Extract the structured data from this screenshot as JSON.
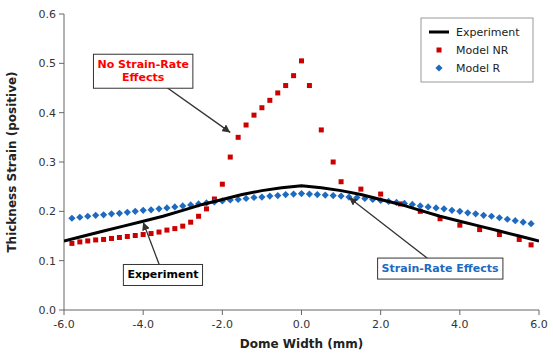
{
  "chart_data": {
    "type": "line",
    "xlabel": "Dome Width (mm)",
    "ylabel": "Thickness Strain (positive)",
    "xlim": [
      -6.0,
      6.0
    ],
    "ylim": [
      0.0,
      0.6
    ],
    "xticks": [
      {
        "value": -6.0,
        "label": "-6.0"
      },
      {
        "value": -4.0,
        "label": "-4.0"
      },
      {
        "value": -2.0,
        "label": "-2.0"
      },
      {
        "value": 0.0,
        "label": "0.0"
      },
      {
        "value": 2.0,
        "label": "2.0"
      },
      {
        "value": 4.0,
        "label": "4.0"
      },
      {
        "value": 6.0,
        "label": "6.0"
      }
    ],
    "yticks": [
      {
        "value": 0.0,
        "label": "0.0"
      },
      0.1,
      0.2,
      0.3,
      0.4,
      0.5,
      0.6
    ],
    "grid": false,
    "legend": "upper right",
    "series": [
      {
        "name": "Experiment",
        "type": "line",
        "color": "#000000",
        "x": [
          -6.0,
          -5.5,
          -5.0,
          -4.5,
          -4.0,
          -3.5,
          -3.0,
          -2.5,
          -2.0,
          -1.5,
          -1.0,
          -0.5,
          0.0,
          0.5,
          1.0,
          1.5,
          2.0,
          2.5,
          3.0,
          3.5,
          4.0,
          4.5,
          5.0,
          5.5,
          6.0
        ],
        "values": [
          0.14,
          0.15,
          0.16,
          0.17,
          0.18,
          0.19,
          0.202,
          0.214,
          0.224,
          0.234,
          0.242,
          0.248,
          0.252,
          0.248,
          0.242,
          0.234,
          0.224,
          0.214,
          0.202,
          0.19,
          0.18,
          0.17,
          0.16,
          0.15,
          0.14
        ]
      },
      {
        "name": "Model NR",
        "type": "scatter",
        "marker": "square",
        "color": "#cc0000",
        "x": [
          -5.8,
          -5.6,
          -5.4,
          -5.2,
          -5.0,
          -4.8,
          -4.6,
          -4.4,
          -4.2,
          -4.0,
          -3.8,
          -3.6,
          -3.4,
          -3.2,
          -3.0,
          -2.8,
          -2.6,
          -2.4,
          -2.2,
          -2.0,
          -1.8,
          -1.6,
          -1.4,
          -1.2,
          -1.0,
          -0.8,
          -0.6,
          -0.4,
          -0.2,
          0.0,
          0.2,
          0.5,
          0.8,
          1.0,
          1.5,
          2.0,
          2.5,
          3.0,
          3.5,
          4.0,
          4.5,
          5.0,
          5.5,
          5.8
        ],
        "values": [
          0.135,
          0.138,
          0.14,
          0.142,
          0.143,
          0.145,
          0.147,
          0.149,
          0.151,
          0.153,
          0.155,
          0.158,
          0.162,
          0.165,
          0.17,
          0.178,
          0.19,
          0.205,
          0.225,
          0.255,
          0.31,
          0.35,
          0.375,
          0.395,
          0.41,
          0.425,
          0.44,
          0.455,
          0.475,
          0.505,
          0.455,
          0.365,
          0.3,
          0.26,
          0.245,
          0.235,
          0.215,
          0.2,
          0.185,
          0.172,
          0.163,
          0.153,
          0.143,
          0.132
        ]
      },
      {
        "name": "Model R",
        "type": "scatter",
        "marker": "diamond",
        "color": "#1e6abf",
        "x": [
          -5.8,
          -5.6,
          -5.4,
          -5.2,
          -5.0,
          -4.8,
          -4.6,
          -4.4,
          -4.2,
          -4.0,
          -3.8,
          -3.6,
          -3.4,
          -3.2,
          -3.0,
          -2.8,
          -2.6,
          -2.4,
          -2.2,
          -2.0,
          -1.8,
          -1.6,
          -1.4,
          -1.2,
          -1.0,
          -0.8,
          -0.6,
          -0.4,
          -0.2,
          0.0,
          0.2,
          0.4,
          0.6,
          0.8,
          1.0,
          1.2,
          1.4,
          1.6,
          1.8,
          2.0,
          2.2,
          2.4,
          2.6,
          2.8,
          3.0,
          3.2,
          3.4,
          3.6,
          3.8,
          4.0,
          4.2,
          4.4,
          4.6,
          4.8,
          5.0,
          5.2,
          5.4,
          5.6,
          5.8
        ],
        "values": [
          0.186,
          0.188,
          0.19,
          0.192,
          0.193,
          0.195,
          0.196,
          0.198,
          0.2,
          0.202,
          0.203,
          0.205,
          0.207,
          0.209,
          0.211,
          0.213,
          0.215,
          0.217,
          0.219,
          0.221,
          0.223,
          0.224,
          0.226,
          0.228,
          0.229,
          0.231,
          0.232,
          0.234,
          0.235,
          0.236,
          0.235,
          0.234,
          0.233,
          0.232,
          0.231,
          0.229,
          0.228,
          0.226,
          0.224,
          0.222,
          0.22,
          0.218,
          0.216,
          0.214,
          0.211,
          0.209,
          0.207,
          0.205,
          0.202,
          0.2,
          0.197,
          0.195,
          0.192,
          0.19,
          0.187,
          0.184,
          0.181,
          0.178,
          0.175
        ]
      }
    ],
    "annotations": [
      {
        "text": "No Strain-Rate\nEffects",
        "color": "red",
        "x": -1.8,
        "y": 0.36,
        "text_x": -4.0,
        "text_y": 0.485
      },
      {
        "text": "Experiment",
        "color": "#000000",
        "x": -4.0,
        "y": 0.178,
        "text_x": -3.5,
        "text_y": 0.072
      },
      {
        "text": "Strain-Rate Effects",
        "color": "#1e6abf",
        "x": 1.2,
        "y": 0.228,
        "text_x": 3.5,
        "text_y": 0.085
      }
    ]
  }
}
